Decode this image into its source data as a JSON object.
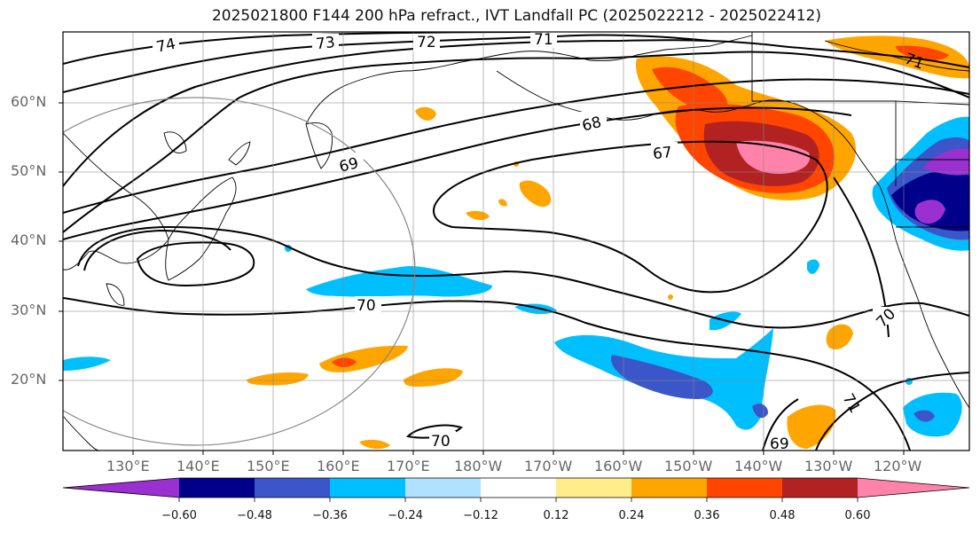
{
  "title": "2025021800 F144 200 hPa refract., IVT Landfall PC (2025022212 - 2025022412)",
  "lat_labels": [
    "60°N",
    "50°N",
    "40°N",
    "30°N",
    "20°N"
  ],
  "lon_labels": [
    "130°E",
    "140°E",
    "150°E",
    "160°E",
    "170°E",
    "180°W",
    "170°W",
    "160°W",
    "150°W",
    "140°W",
    "130°W",
    "120°W"
  ],
  "contour_labels": [
    "74",
    "73",
    "72",
    "71",
    "71",
    "68",
    "69",
    "67",
    "70",
    "70",
    "71",
    "70",
    "69"
  ],
  "colorbar": {
    "colors": [
      "#9b30d0",
      "#00008b",
      "#3a56c8",
      "#00bfff",
      "#b0e2ff",
      "#ffffff",
      "#ffec8b",
      "#ffa500",
      "#ff4500",
      "#b22222",
      "#ff82ab"
    ],
    "tick_labels": [
      "−0.60",
      "−0.48",
      "−0.36",
      "−0.24",
      "−0.12",
      "0.12",
      "0.24",
      "0.36",
      "0.48",
      "0.60"
    ]
  }
}
